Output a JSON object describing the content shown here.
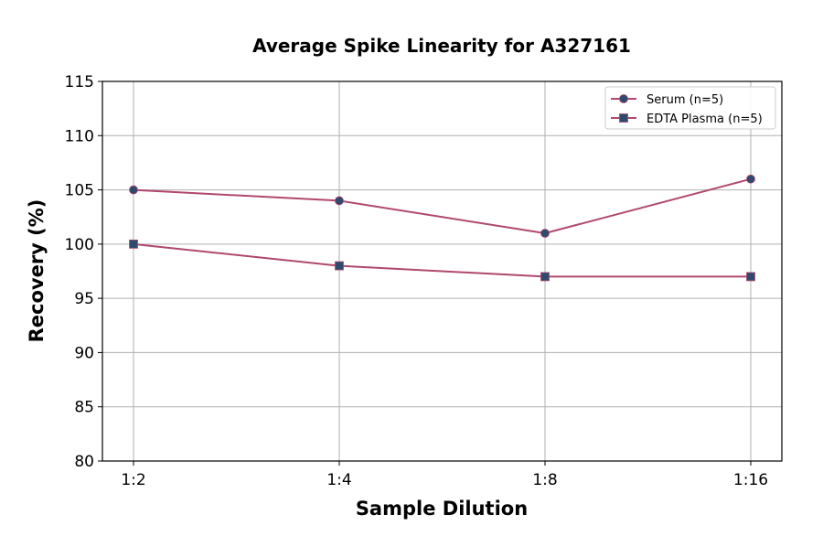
{
  "chart_data": {
    "type": "line",
    "title": "Average Spike Linearity for A327161",
    "xlabel": "Sample Dilution",
    "ylabel": "Recovery (%)",
    "categories": [
      "1:2",
      "1:4",
      "1:8",
      "1:16"
    ],
    "ylim": [
      80,
      115
    ],
    "yticks": [
      80,
      85,
      90,
      95,
      100,
      105,
      110,
      115
    ],
    "grid": true,
    "legend_position": "top-right",
    "series": [
      {
        "name": "Serum (n=5)",
        "marker": "circle",
        "values": [
          105,
          104,
          101,
          106
        ]
      },
      {
        "name": "EDTA Plasma (n=5)",
        "marker": "square",
        "values": [
          100,
          98,
          97,
          97
        ]
      }
    ],
    "colors": {
      "line": "#b0486e",
      "marker": "#2e4a6e",
      "grid": "#b0b0b0"
    }
  }
}
